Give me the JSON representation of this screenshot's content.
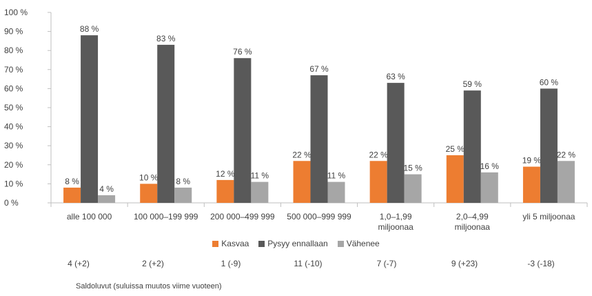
{
  "chart_data": {
    "type": "bar",
    "categories": [
      [
        "alle 100 000"
      ],
      [
        "100 000–199 999"
      ],
      [
        "200 000–499 999"
      ],
      [
        "500 000–999 999"
      ],
      [
        "1,0–1,99",
        "miljoonaa"
      ],
      [
        "2,0–4,99",
        "miljoonaa"
      ],
      [
        "yli 5 miljoonaa"
      ]
    ],
    "series": [
      {
        "name": "Kasvaa",
        "color": "#ed7d31",
        "values": [
          8,
          10,
          12,
          22,
          22,
          25,
          19
        ],
        "labels": [
          "8 %",
          "10 %",
          "12 %",
          "22 %",
          "22 %",
          "25 %",
          "19 %"
        ]
      },
      {
        "name": "Pysyy ennallaan",
        "color": "#595959",
        "values": [
          88,
          83,
          76,
          67,
          63,
          59,
          60
        ],
        "labels": [
          "88 %",
          "83 %",
          "76 %",
          "67 %",
          "63 %",
          "59 %",
          "60 %"
        ]
      },
      {
        "name": "Vähenee",
        "color": "#a6a6a6",
        "values": [
          4,
          8,
          11,
          11,
          15,
          16,
          22
        ],
        "labels": [
          "4 %",
          "8 %",
          "11 %",
          "11 %",
          "15 %",
          "16 %",
          "22 %"
        ]
      }
    ],
    "ylim": [
      0,
      100
    ],
    "ytick_labels": [
      "0 %",
      "10 %",
      "20 %",
      "30 %",
      "40 %",
      "50 %",
      "60 %",
      "70 %",
      "80 %",
      "90 %",
      "100 %"
    ],
    "grid": false,
    "legend": "bottom"
  },
  "saldo": {
    "values": [
      "4 (+2)",
      "2 (+2)",
      "1 (-9)",
      "11 (-10)",
      "7 (-7)",
      "9 (+23)",
      "-3 (-18)"
    ],
    "caption": "Saldoluvut (suluissa muutos viime vuoteen)"
  }
}
